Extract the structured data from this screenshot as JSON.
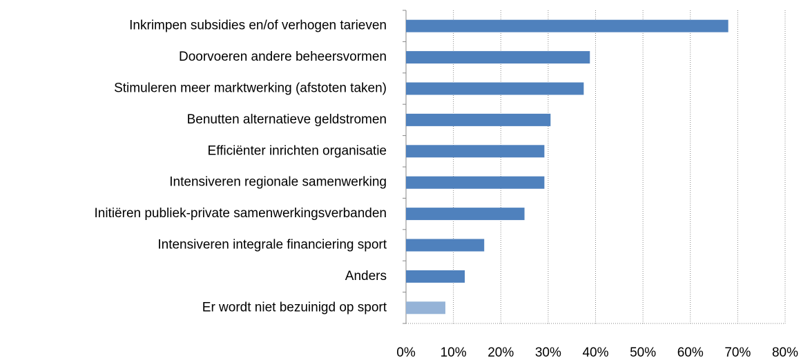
{
  "chart_data": {
    "type": "bar",
    "orientation": "horizontal",
    "categories": [
      "Inkrimpen subsidies en/of verhogen tarieven",
      "Doorvoeren andere beheersvormen",
      "Stimuleren meer marktwerking (afstoten taken)",
      "Benutten alternatieve geldstromen",
      "Efficiënter inrichten organisatie",
      "Intensiveren regionale samenwerking",
      "Initiëren publiek-private samenwerkingsverbanden",
      "Intensiveren integrale financiering sport",
      "Anders",
      "Er wordt niet bezuinigd op sport"
    ],
    "values": [
      68,
      38.8,
      37.5,
      30.5,
      29.2,
      29.2,
      25,
      16.5,
      12.4,
      8.3
    ],
    "colors": [
      "#4f81bd",
      "#4f81bd",
      "#4f81bd",
      "#4f81bd",
      "#4f81bd",
      "#4f81bd",
      "#4f81bd",
      "#4f81bd",
      "#4f81bd",
      "#95b3d7"
    ],
    "xlim": [
      0,
      80
    ],
    "xticks": [
      {
        "value": 0,
        "label": "0%"
      },
      {
        "value": 10,
        "label": "10%"
      },
      {
        "value": 20,
        "label": "20%"
      },
      {
        "value": 30,
        "label": "30%"
      },
      {
        "value": 40,
        "label": "40%"
      },
      {
        "value": 50,
        "label": "50%"
      },
      {
        "value": 60,
        "label": "60%"
      },
      {
        "value": 70,
        "label": "70%"
      },
      {
        "value": 80,
        "label": "80%"
      }
    ],
    "grid": true
  }
}
